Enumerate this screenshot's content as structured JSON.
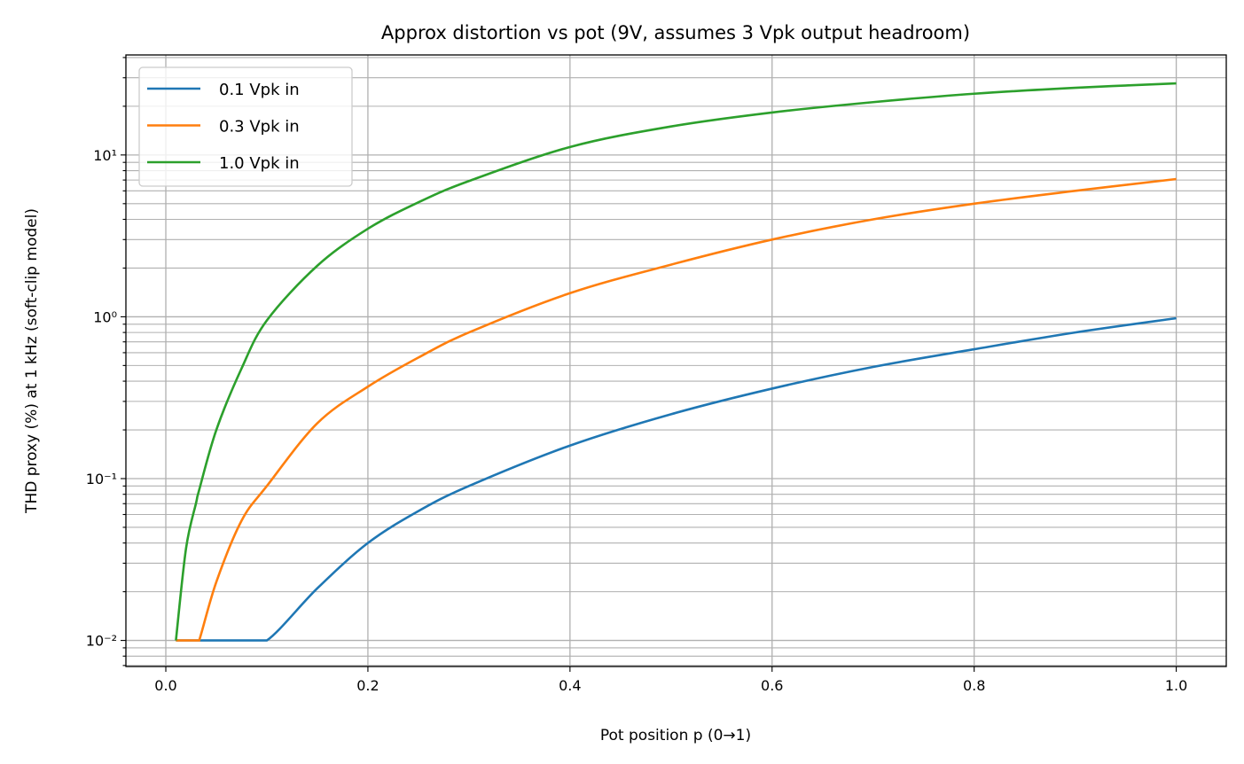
{
  "chart_data": {
    "type": "line",
    "title": "Approx distortion vs pot (9V, assumes 3 Vpk output headroom)",
    "xlabel": "Pot position p (0→1)",
    "ylabel": "THD proxy (%) at 1 kHz (soft-clip model)",
    "xscale": "linear",
    "yscale": "log",
    "xlim": [
      -0.0395,
      1.0495
    ],
    "ylim": [
      0.0069,
      41.5
    ],
    "xticks": [
      "0.0",
      "0.2",
      "0.4",
      "0.6",
      "0.8",
      "1.0"
    ],
    "xtick_values": [
      0,
      0.2,
      0.4,
      0.6,
      0.8,
      1.0
    ],
    "yticks": [
      "10⁻²",
      "10⁻¹",
      "10⁰",
      "10¹"
    ],
    "ytick_values": [
      0.01,
      0.1,
      1,
      10
    ],
    "grid": "major x, major+minor y",
    "legend_position": "top-left",
    "x": [
      0.01,
      0.02,
      0.03,
      0.033,
      0.05,
      0.075,
      0.1,
      0.15,
      0.2,
      0.25,
      0.3,
      0.4,
      0.5,
      0.6,
      0.7,
      0.8,
      0.9,
      1.0
    ],
    "series": [
      {
        "name": "0.1 Vpk in",
        "color": "#1f77b4",
        "values": [
          0.01,
          0.01,
          0.01,
          0.01,
          0.01,
          0.01,
          0.01,
          0.021,
          0.04,
          0.063,
          0.09,
          0.16,
          0.25,
          0.36,
          0.49,
          0.63,
          0.8,
          0.98
        ]
      },
      {
        "name": "0.3 Vpk in",
        "color": "#ff7f0e",
        "values": [
          0.01,
          0.01,
          0.01,
          0.01,
          0.023,
          0.055,
          0.09,
          0.22,
          0.37,
          0.56,
          0.8,
          1.4,
          2.1,
          3.0,
          4.0,
          5.0,
          6.0,
          7.1
        ]
      },
      {
        "name": "1.0 Vpk in",
        "color": "#2ca02c",
        "values": [
          0.01,
          0.037,
          0.071,
          0.085,
          0.2,
          0.48,
          0.95,
          2.07,
          3.5,
          5.1,
          6.9,
          11.2,
          15,
          18.3,
          21.2,
          23.9,
          26,
          27.7
        ]
      }
    ]
  }
}
